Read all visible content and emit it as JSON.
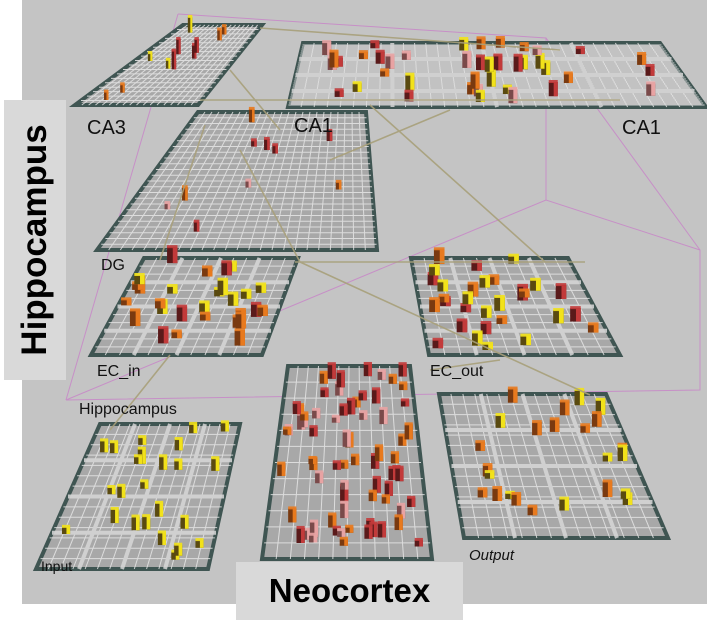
{
  "side_label": "Hippocampus",
  "bottom_label": "Neocortex",
  "layers": {
    "ca3": "CA3",
    "ca1_left": "CA1",
    "ca1_right": "CA1",
    "dg": "DG",
    "ec_in": "EC_in",
    "ec_out": "EC_out",
    "hippocampus_sub": "Hippocampus",
    "input": "Input",
    "output": "Output"
  },
  "colors": {
    "background": "#c4c4c4",
    "grid_fill": "#a8a8a8",
    "grid_line": "#e6e6e6",
    "frame": "#3f5552",
    "unit_yellow": "#f2e21a",
    "unit_dark": "#5a4a10",
    "unit_orange": "#e87a1e",
    "unit_red": "#c23a3a",
    "unit_pink": "#e8a3a3",
    "projection": "#a8a07a",
    "bounding_box": "#c78fc7",
    "panel_bg": "#d9d9d9"
  }
}
